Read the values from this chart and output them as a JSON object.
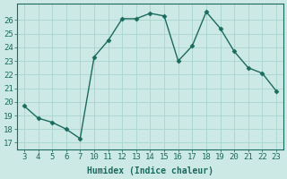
{
  "x_labels": [
    "3",
    "4",
    "5",
    "6",
    "7",
    "10",
    "11",
    "12",
    "13",
    "14",
    "15",
    "16",
    "17",
    "18",
    "19",
    "20",
    "21",
    "22",
    "23"
  ],
  "y": [
    19.7,
    18.8,
    18.5,
    18.0,
    17.3,
    23.3,
    24.5,
    26.1,
    26.1,
    26.5,
    26.3,
    23.0,
    24.1,
    26.6,
    25.4,
    23.7,
    22.5,
    22.1,
    20.8
  ],
  "line_color": "#1a6b5e",
  "marker": "D",
  "markersize": 2.5,
  "linewidth": 1.0,
  "xlabel": "Humidex (Indice chaleur)",
  "ylim": [
    16.5,
    27.2
  ],
  "yticks": [
    17,
    18,
    19,
    20,
    21,
    22,
    23,
    24,
    25,
    26
  ],
  "bg_color": "#cce9e5",
  "grid_color": "#aad4ce",
  "line_and_tick_color": "#1a6b5e",
  "font_size_xlabel": 7,
  "font_size_ticks": 6.5
}
